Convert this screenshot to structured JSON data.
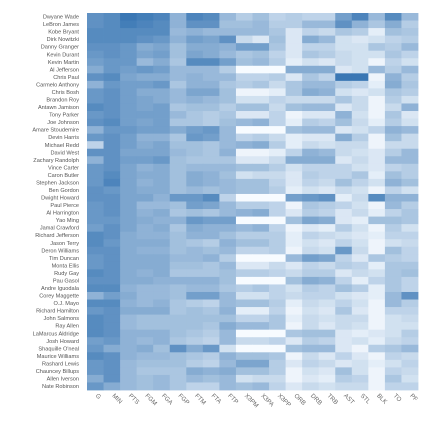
{
  "chart_data": {
    "type": "heatmap",
    "title": "",
    "xlabel": "",
    "ylabel": "",
    "color_low": "#f7fbff",
    "color_high": "#3a77b4",
    "grid": false,
    "legend": "none",
    "columns": [
      "G",
      "MIN",
      "PTS",
      "FGM",
      "FGA",
      "FGP",
      "FTM",
      "FTA",
      "FTP",
      "X3PM",
      "X3PA",
      "X3PP",
      "ORB",
      "DRB",
      "TRB",
      "AST",
      "STL",
      "BLK",
      "TO",
      "PF"
    ],
    "rows": [
      "Dwyane Wade",
      "LeBron James",
      "Kobe Bryant",
      "Dirk Nowitzki",
      "Danny Granger",
      "Kevin Durant",
      "Kevin Martin",
      "Al Jefferson",
      "Chris Paul",
      "Carmelo Anthony",
      "Chris Bosh",
      "Brandon Roy",
      "Antawn Jamison",
      "Tony Parker",
      "Joe Johnson",
      "Amare Stoudemire",
      "Devin Harris",
      "Michael Redd",
      "David West",
      "Zachary Randolph",
      "Vince Carter",
      "Caron Butler",
      "Stephen Jackson",
      "Ben Gordon",
      "Dwight Howard",
      "Paul Pierce",
      "Al Harrington",
      "Yao Ming",
      "Jamal Crawford",
      "Richard Jefferson",
      "Jason Terry",
      "Deron Williams",
      "Tim Duncan",
      "Monta Ellis",
      "Rudy Gay",
      "Pau Gasol",
      "Andre Iguodala",
      "Corey Maggette",
      "O.J. Mayo",
      "Richard Hamilton",
      "John Salmons",
      "Ray Allen",
      "LaMarcus Aldridge",
      "Josh Howard",
      "Shaquille O'neal",
      "Maurice Williams",
      "Rashard Lewis",
      "Chauncey Billups",
      "Allen Iverson",
      "Nate Robinson"
    ],
    "values": [
      [
        0.8,
        0.85,
        1.0,
        0.95,
        0.9,
        0.55,
        0.9,
        0.85,
        0.5,
        0.35,
        0.45,
        0.3,
        0.35,
        0.3,
        0.3,
        0.7,
        0.9,
        0.5,
        0.85,
        0.5
      ],
      [
        0.8,
        0.85,
        0.95,
        0.9,
        0.85,
        0.55,
        0.8,
        0.8,
        0.45,
        0.45,
        0.5,
        0.35,
        0.35,
        0.5,
        0.5,
        0.8,
        0.55,
        0.4,
        0.6,
        0.35
      ],
      [
        0.85,
        0.85,
        0.85,
        0.85,
        0.85,
        0.5,
        0.55,
        0.5,
        0.5,
        0.5,
        0.5,
        0.4,
        0.15,
        0.3,
        0.25,
        0.4,
        0.35,
        0.1,
        0.45,
        0.4
      ],
      [
        0.85,
        0.85,
        0.85,
        0.8,
        0.75,
        0.55,
        0.7,
        0.65,
        0.8,
        0.25,
        0.15,
        0.45,
        0.15,
        0.6,
        0.5,
        0.2,
        0.15,
        0.2,
        0.3,
        0.35
      ],
      [
        0.8,
        0.8,
        0.75,
        0.6,
        0.65,
        0.45,
        0.6,
        0.6,
        0.55,
        0.7,
        0.7,
        0.4,
        0.15,
        0.3,
        0.3,
        0.2,
        0.2,
        0.4,
        0.35,
        0.5
      ],
      [
        0.75,
        0.8,
        0.75,
        0.65,
        0.7,
        0.45,
        0.65,
        0.6,
        0.5,
        0.4,
        0.45,
        0.3,
        0.15,
        0.4,
        0.35,
        0.25,
        0.2,
        0.2,
        0.4,
        0.3
      ],
      [
        0.7,
        0.75,
        0.75,
        0.5,
        0.6,
        0.4,
        0.85,
        0.85,
        0.7,
        0.45,
        0.5,
        0.35,
        0.1,
        0.2,
        0.15,
        0.25,
        0.2,
        0.05,
        0.3,
        0.2
      ],
      [
        0.6,
        0.75,
        0.7,
        0.75,
        0.7,
        0.5,
        0.5,
        0.5,
        0.35,
        0.0,
        0.0,
        0.0,
        0.6,
        0.6,
        0.6,
        0.15,
        0.2,
        0.5,
        0.35,
        0.5
      ],
      [
        0.8,
        0.85,
        0.65,
        0.6,
        0.6,
        0.5,
        0.55,
        0.5,
        0.5,
        0.3,
        0.3,
        0.35,
        0.15,
        0.4,
        0.3,
        1.0,
        1.0,
        0.05,
        0.55,
        0.35
      ],
      [
        0.55,
        0.75,
        0.7,
        0.7,
        0.75,
        0.4,
        0.55,
        0.55,
        0.4,
        0.35,
        0.4,
        0.25,
        0.4,
        0.5,
        0.5,
        0.35,
        0.3,
        0.1,
        0.6,
        0.4
      ],
      [
        0.75,
        0.8,
        0.7,
        0.6,
        0.6,
        0.5,
        0.65,
        0.65,
        0.45,
        0.05,
        0.05,
        0.1,
        0.4,
        0.6,
        0.55,
        0.2,
        0.15,
        0.2,
        0.4,
        0.35
      ],
      [
        0.75,
        0.8,
        0.7,
        0.65,
        0.6,
        0.5,
        0.55,
        0.5,
        0.45,
        0.2,
        0.2,
        0.3,
        0.25,
        0.25,
        0.25,
        0.4,
        0.25,
        0.05,
        0.35,
        0.2
      ],
      [
        0.85,
        0.8,
        0.7,
        0.65,
        0.7,
        0.4,
        0.45,
        0.45,
        0.35,
        0.45,
        0.45,
        0.25,
        0.45,
        0.5,
        0.5,
        0.15,
        0.25,
        0.05,
        0.25,
        0.55
      ],
      [
        0.75,
        0.8,
        0.7,
        0.7,
        0.7,
        0.5,
        0.4,
        0.35,
        0.4,
        0.15,
        0.15,
        0.3,
        0.05,
        0.15,
        0.15,
        0.55,
        0.2,
        0.05,
        0.4,
        0.15
      ],
      [
        0.8,
        0.85,
        0.7,
        0.65,
        0.7,
        0.4,
        0.4,
        0.35,
        0.45,
        0.5,
        0.55,
        0.3,
        0.1,
        0.35,
        0.3,
        0.45,
        0.25,
        0.1,
        0.35,
        0.2
      ],
      [
        0.55,
        0.75,
        0.75,
        0.7,
        0.7,
        0.6,
        0.7,
        0.75,
        0.5,
        0.0,
        0.0,
        0.0,
        0.45,
        0.5,
        0.5,
        0.15,
        0.2,
        0.3,
        0.55,
        0.5
      ],
      [
        0.75,
        0.8,
        0.7,
        0.55,
        0.55,
        0.4,
        0.75,
        0.7,
        0.5,
        0.3,
        0.35,
        0.25,
        0.1,
        0.15,
        0.15,
        0.6,
        0.35,
        0.05,
        0.45,
        0.25
      ],
      [
        0.3,
        0.8,
        0.7,
        0.6,
        0.65,
        0.45,
        0.45,
        0.4,
        0.5,
        0.55,
        0.6,
        0.35,
        0.1,
        0.25,
        0.2,
        0.25,
        0.25,
        0.05,
        0.25,
        0.25
      ],
      [
        0.8,
        0.8,
        0.65,
        0.65,
        0.65,
        0.5,
        0.45,
        0.4,
        0.55,
        0.05,
        0.05,
        0.1,
        0.3,
        0.55,
        0.5,
        0.25,
        0.2,
        0.15,
        0.35,
        0.5
      ],
      [
        0.55,
        0.8,
        0.7,
        0.7,
        0.75,
        0.45,
        0.4,
        0.4,
        0.4,
        0.15,
        0.15,
        0.25,
        0.6,
        0.6,
        0.6,
        0.15,
        0.25,
        0.15,
        0.5,
        0.5
      ],
      [
        0.75,
        0.8,
        0.65,
        0.55,
        0.6,
        0.45,
        0.5,
        0.5,
        0.5,
        0.45,
        0.45,
        0.35,
        0.2,
        0.3,
        0.3,
        0.3,
        0.2,
        0.15,
        0.3,
        0.35
      ],
      [
        0.75,
        0.85,
        0.65,
        0.6,
        0.6,
        0.45,
        0.6,
        0.55,
        0.45,
        0.2,
        0.25,
        0.25,
        0.15,
        0.35,
        0.3,
        0.3,
        0.4,
        0.1,
        0.45,
        0.35
      ],
      [
        0.75,
        0.9,
        0.65,
        0.55,
        0.6,
        0.45,
        0.6,
        0.55,
        0.5,
        0.45,
        0.45,
        0.3,
        0.15,
        0.3,
        0.25,
        0.45,
        0.3,
        0.2,
        0.55,
        0.45
      ],
      [
        0.8,
        0.75,
        0.65,
        0.6,
        0.6,
        0.45,
        0.5,
        0.45,
        0.5,
        0.45,
        0.45,
        0.35,
        0.1,
        0.2,
        0.15,
        0.25,
        0.2,
        0.05,
        0.3,
        0.2
      ],
      [
        0.8,
        0.8,
        0.65,
        0.65,
        0.55,
        0.75,
        0.75,
        0.85,
        0.3,
        0.0,
        0.0,
        0.0,
        0.7,
        0.75,
        0.8,
        0.1,
        0.25,
        0.85,
        0.55,
        0.55
      ],
      [
        0.75,
        0.8,
        0.65,
        0.5,
        0.5,
        0.45,
        0.7,
        0.65,
        0.5,
        0.35,
        0.35,
        0.3,
        0.05,
        0.4,
        0.35,
        0.3,
        0.2,
        0.05,
        0.5,
        0.35
      ],
      [
        0.75,
        0.8,
        0.65,
        0.55,
        0.6,
        0.4,
        0.45,
        0.4,
        0.5,
        0.55,
        0.6,
        0.3,
        0.15,
        0.35,
        0.3,
        0.15,
        0.25,
        0.1,
        0.3,
        0.4
      ],
      [
        0.75,
        0.75,
        0.65,
        0.6,
        0.55,
        0.55,
        0.75,
        0.7,
        0.7,
        0.0,
        0.0,
        0.0,
        0.45,
        0.65,
        0.6,
        0.15,
        0.1,
        0.45,
        0.45,
        0.4
      ],
      [
        0.7,
        0.8,
        0.65,
        0.55,
        0.6,
        0.4,
        0.6,
        0.55,
        0.55,
        0.5,
        0.55,
        0.3,
        0.05,
        0.15,
        0.1,
        0.35,
        0.2,
        0.05,
        0.35,
        0.2
      ],
      [
        0.85,
        0.8,
        0.6,
        0.55,
        0.55,
        0.45,
        0.55,
        0.55,
        0.45,
        0.35,
        0.35,
        0.35,
        0.1,
        0.3,
        0.25,
        0.2,
        0.15,
        0.1,
        0.3,
        0.3
      ],
      [
        0.85,
        0.75,
        0.6,
        0.6,
        0.6,
        0.45,
        0.4,
        0.35,
        0.55,
        0.45,
        0.45,
        0.35,
        0.1,
        0.2,
        0.15,
        0.3,
        0.2,
        0.05,
        0.2,
        0.25
      ],
      [
        0.8,
        0.8,
        0.6,
        0.55,
        0.55,
        0.45,
        0.5,
        0.45,
        0.5,
        0.3,
        0.3,
        0.35,
        0.05,
        0.25,
        0.2,
        0.75,
        0.25,
        0.05,
        0.45,
        0.3
      ],
      [
        0.75,
        0.8,
        0.6,
        0.6,
        0.6,
        0.5,
        0.5,
        0.55,
        0.35,
        0.0,
        0.0,
        0.0,
        0.5,
        0.7,
        0.65,
        0.3,
        0.15,
        0.4,
        0.35,
        0.3
      ],
      [
        0.75,
        0.8,
        0.6,
        0.6,
        0.6,
        0.45,
        0.45,
        0.4,
        0.5,
        0.15,
        0.15,
        0.25,
        0.15,
        0.3,
        0.25,
        0.35,
        0.3,
        0.1,
        0.4,
        0.4
      ],
      [
        0.85,
        0.8,
        0.6,
        0.55,
        0.6,
        0.4,
        0.4,
        0.4,
        0.45,
        0.35,
        0.35,
        0.3,
        0.25,
        0.35,
        0.35,
        0.15,
        0.25,
        0.2,
        0.4,
        0.45
      ],
      [
        0.8,
        0.8,
        0.6,
        0.6,
        0.55,
        0.55,
        0.55,
        0.55,
        0.45,
        0.0,
        0.0,
        0.0,
        0.45,
        0.6,
        0.55,
        0.3,
        0.1,
        0.3,
        0.4,
        0.3
      ],
      [
        0.85,
        0.85,
        0.55,
        0.5,
        0.5,
        0.45,
        0.5,
        0.5,
        0.4,
        0.35,
        0.4,
        0.3,
        0.2,
        0.35,
        0.3,
        0.45,
        0.35,
        0.1,
        0.4,
        0.3
      ],
      [
        0.55,
        0.7,
        0.6,
        0.5,
        0.5,
        0.45,
        0.7,
        0.7,
        0.5,
        0.2,
        0.2,
        0.3,
        0.25,
        0.3,
        0.3,
        0.2,
        0.15,
        0.1,
        0.5,
        0.8
      ],
      [
        0.85,
        0.85,
        0.55,
        0.5,
        0.55,
        0.4,
        0.35,
        0.3,
        0.5,
        0.45,
        0.45,
        0.35,
        0.1,
        0.25,
        0.2,
        0.3,
        0.2,
        0.05,
        0.5,
        0.35
      ],
      [
        0.75,
        0.8,
        0.6,
        0.6,
        0.6,
        0.4,
        0.45,
        0.4,
        0.55,
        0.1,
        0.1,
        0.3,
        0.05,
        0.2,
        0.15,
        0.4,
        0.15,
        0.05,
        0.3,
        0.3
      ],
      [
        0.85,
        0.8,
        0.5,
        0.45,
        0.45,
        0.45,
        0.45,
        0.45,
        0.45,
        0.3,
        0.3,
        0.4,
        0.1,
        0.25,
        0.2,
        0.25,
        0.25,
        0.05,
        0.2,
        0.25
      ],
      [
        0.85,
        0.8,
        0.5,
        0.45,
        0.45,
        0.45,
        0.45,
        0.4,
        0.6,
        0.5,
        0.5,
        0.4,
        0.05,
        0.25,
        0.15,
        0.25,
        0.2,
        0.05,
        0.2,
        0.2
      ],
      [
        0.85,
        0.8,
        0.55,
        0.55,
        0.55,
        0.45,
        0.4,
        0.35,
        0.5,
        0.0,
        0.0,
        0.0,
        0.4,
        0.45,
        0.45,
        0.15,
        0.1,
        0.15,
        0.2,
        0.35
      ],
      [
        0.7,
        0.75,
        0.55,
        0.5,
        0.55,
        0.4,
        0.35,
        0.3,
        0.5,
        0.25,
        0.25,
        0.3,
        0.15,
        0.35,
        0.3,
        0.15,
        0.2,
        0.1,
        0.25,
        0.3
      ],
      [
        0.75,
        0.6,
        0.55,
        0.6,
        0.45,
        0.8,
        0.6,
        0.75,
        0.2,
        0.0,
        0.0,
        0.0,
        0.45,
        0.5,
        0.5,
        0.15,
        0.05,
        0.35,
        0.4,
        0.5
      ],
      [
        0.85,
        0.8,
        0.55,
        0.5,
        0.5,
        0.45,
        0.4,
        0.35,
        0.55,
        0.45,
        0.45,
        0.4,
        0.05,
        0.25,
        0.15,
        0.3,
        0.15,
        0.05,
        0.3,
        0.25
      ],
      [
        0.75,
        0.8,
        0.5,
        0.45,
        0.45,
        0.45,
        0.35,
        0.3,
        0.5,
        0.65,
        0.65,
        0.35,
        0.15,
        0.3,
        0.25,
        0.15,
        0.2,
        0.1,
        0.2,
        0.3
      ],
      [
        0.75,
        0.8,
        0.5,
        0.4,
        0.4,
        0.4,
        0.6,
        0.55,
        0.6,
        0.45,
        0.45,
        0.35,
        0.05,
        0.2,
        0.15,
        0.45,
        0.2,
        0.05,
        0.3,
        0.25
      ],
      [
        0.6,
        0.8,
        0.5,
        0.45,
        0.5,
        0.4,
        0.5,
        0.45,
        0.5,
        0.2,
        0.25,
        0.25,
        0.05,
        0.15,
        0.1,
        0.35,
        0.3,
        0.05,
        0.4,
        0.2
      ],
      [
        0.75,
        0.6,
        0.5,
        0.45,
        0.5,
        0.4,
        0.3,
        0.3,
        0.5,
        0.45,
        0.5,
        0.3,
        0.15,
        0.25,
        0.2,
        0.25,
        0.25,
        0.05,
        0.3,
        0.3
      ]
    ]
  }
}
